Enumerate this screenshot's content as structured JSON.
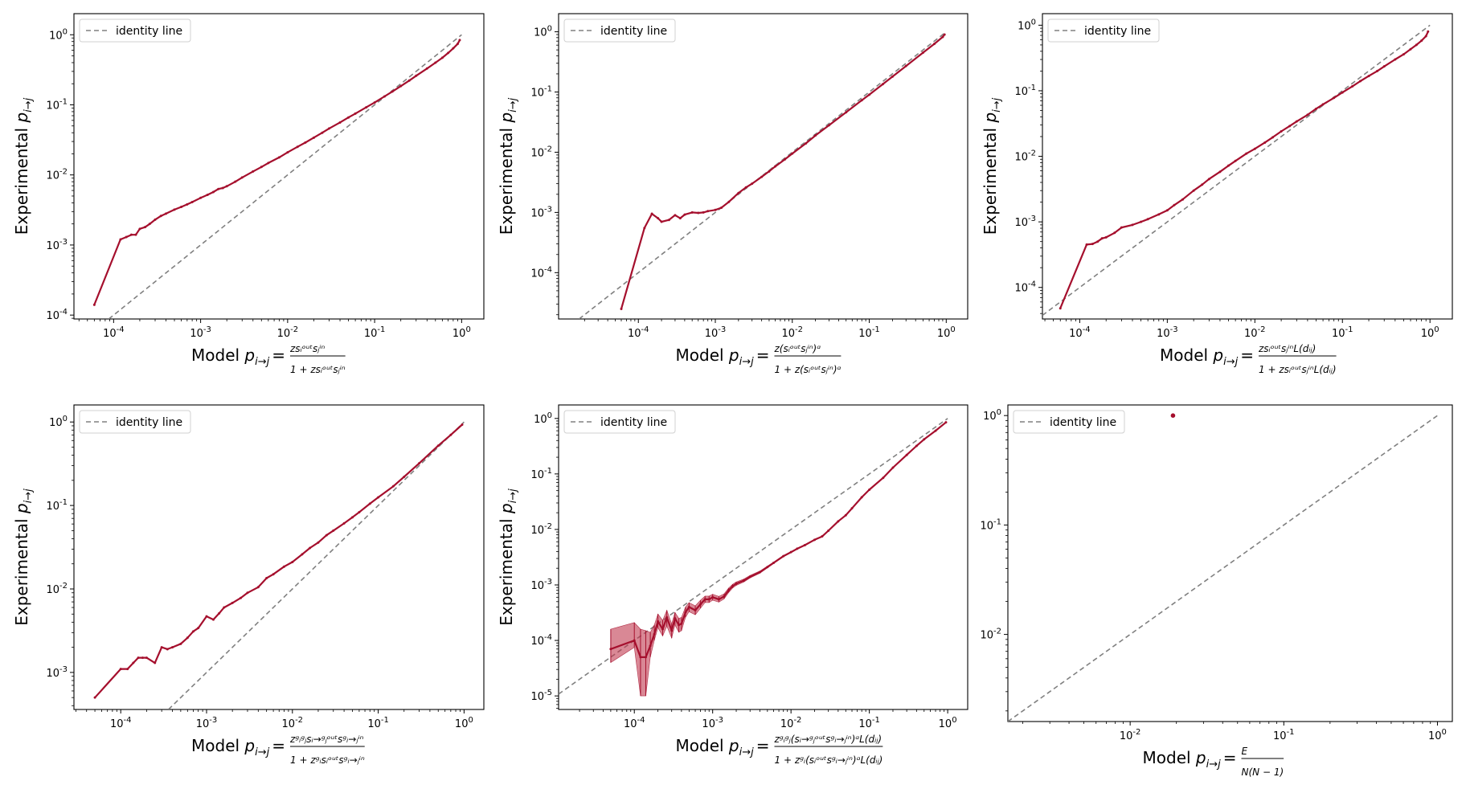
{
  "figure": {
    "legend_label": "identity line",
    "ylabel_text": "Experimental ",
    "ylabel_symbol": "p",
    "ylabel_sub": "i→j",
    "xlabel_prefix": "Model ",
    "xlabel_symbol": "p",
    "xlabel_sub": "i→j",
    "xlabel_eq": "=",
    "line_color": "#a50f2d",
    "band_color": "#c0394f",
    "identity_color": "#808080"
  },
  "chart_data": [
    {
      "type": "line",
      "panel": "top-left",
      "xscale": "log",
      "yscale": "log",
      "xlim": [
        3.5e-05,
        1.8
      ],
      "ylim": [
        8.8e-05,
        2.0
      ],
      "xticks": [
        {
          "v": 0.0001,
          "m": "10",
          "e": "-4"
        },
        {
          "v": 0.001,
          "m": "10",
          "e": "-3"
        },
        {
          "v": 0.01,
          "m": "10",
          "e": "-2"
        },
        {
          "v": 0.1,
          "m": "10",
          "e": "-1"
        },
        {
          "v": 1,
          "m": "10",
          "e": "0"
        }
      ],
      "yticks": [
        {
          "v": 0.0001,
          "m": "10",
          "e": "-4"
        },
        {
          "v": 0.001,
          "m": "10",
          "e": "-3"
        },
        {
          "v": 0.01,
          "m": "10",
          "e": "-2"
        },
        {
          "v": 0.1,
          "m": "10",
          "e": "-1"
        },
        {
          "v": 1,
          "m": "10",
          "e": "0"
        }
      ],
      "legend": "top-left",
      "xlabel_num": "zsᵢᵒᵘᵗsⱼⁱⁿ",
      "xlabel_den": "1 + zsᵢᵒᵘᵗsⱼⁱⁿ",
      "show_ylabel": true,
      "series": [
        {
          "name": "experimental",
          "x": [
            6e-05,
            0.00012,
            0.00014,
            0.00016,
            0.00018,
            0.0002,
            0.00023,
            0.00026,
            0.0003,
            0.00035,
            0.0004,
            0.0005,
            0.0006,
            0.0007,
            0.0008,
            0.001,
            0.0012,
            0.0014,
            0.0016,
            0.0018,
            0.002,
            0.0025,
            0.003,
            0.004,
            0.005,
            0.006,
            0.008,
            0.01,
            0.013,
            0.016,
            0.02,
            0.025,
            0.03,
            0.04,
            0.05,
            0.06,
            0.08,
            0.1,
            0.13,
            0.16,
            0.2,
            0.25,
            0.3,
            0.4,
            0.5,
            0.6,
            0.7,
            0.8,
            0.9,
            0.95
          ],
          "y": [
            0.00014,
            0.0012,
            0.0013,
            0.0014,
            0.0014,
            0.0017,
            0.0018,
            0.002,
            0.0023,
            0.0026,
            0.0028,
            0.0032,
            0.0035,
            0.0038,
            0.0041,
            0.0047,
            0.0052,
            0.0057,
            0.0063,
            0.0065,
            0.0069,
            0.008,
            0.0092,
            0.0112,
            0.013,
            0.0148,
            0.0178,
            0.021,
            0.0252,
            0.029,
            0.034,
            0.04,
            0.046,
            0.056,
            0.066,
            0.075,
            0.092,
            0.108,
            0.132,
            0.155,
            0.185,
            0.222,
            0.26,
            0.33,
            0.4,
            0.47,
            0.55,
            0.64,
            0.74,
            0.84
          ]
        }
      ]
    },
    {
      "type": "line",
      "panel": "top-middle",
      "xscale": "log",
      "yscale": "log",
      "xlim": [
        9.2e-06,
        1.9
      ],
      "ylim": [
        1.7e-05,
        2.0
      ],
      "xticks": [
        {
          "v": 0.0001,
          "m": "10",
          "e": "-4"
        },
        {
          "v": 0.001,
          "m": "10",
          "e": "-3"
        },
        {
          "v": 0.01,
          "m": "10",
          "e": "-2"
        },
        {
          "v": 0.1,
          "m": "10",
          "e": "-1"
        },
        {
          "v": 1,
          "m": "10",
          "e": "0"
        }
      ],
      "yticks": [
        {
          "v": 0.0001,
          "m": "10",
          "e": "-4"
        },
        {
          "v": 0.001,
          "m": "10",
          "e": "-3"
        },
        {
          "v": 0.01,
          "m": "10",
          "e": "-2"
        },
        {
          "v": 0.1,
          "m": "10",
          "e": "-1"
        },
        {
          "v": 1,
          "m": "10",
          "e": "0"
        }
      ],
      "legend": "top-left",
      "xlabel_num": "z(sᵢᵒᵘᵗsⱼⁱⁿ)ᵅ",
      "xlabel_den": "1 + z(sᵢᵒᵘᵗsⱼⁱⁿ)ᵅ",
      "show_ylabel": true,
      "series": [
        {
          "name": "experimental",
          "x": [
            6e-05,
            0.00012,
            0.00015,
            0.00018,
            0.0002,
            0.00025,
            0.0003,
            0.00035,
            0.0004,
            0.0005,
            0.0006,
            0.0007,
            0.0008,
            0.001,
            0.0012,
            0.0015,
            0.002,
            0.0025,
            0.003,
            0.004,
            0.005,
            0.006,
            0.008,
            0.01,
            0.015,
            0.02,
            0.03,
            0.05,
            0.08,
            0.1,
            0.15,
            0.2,
            0.3,
            0.5,
            0.7,
            0.9,
            0.95
          ],
          "y": [
            2.5e-05,
            0.00055,
            0.00095,
            0.0008,
            0.0007,
            0.00075,
            0.0009,
            0.0008,
            0.00092,
            0.001,
            0.00098,
            0.001,
            0.00105,
            0.0011,
            0.0012,
            0.0015,
            0.0021,
            0.0026,
            0.003,
            0.0039,
            0.0048,
            0.0058,
            0.0076,
            0.0095,
            0.014,
            0.019,
            0.028,
            0.046,
            0.073,
            0.09,
            0.135,
            0.18,
            0.27,
            0.45,
            0.63,
            0.82,
            0.9
          ]
        }
      ]
    },
    {
      "type": "line",
      "panel": "top-right",
      "xscale": "log",
      "yscale": "log",
      "xlim": [
        3.75e-05,
        1.8
      ],
      "ylim": [
        3.3e-05,
        1.5
      ],
      "xticks": [
        {
          "v": 0.0001,
          "m": "10",
          "e": "-4"
        },
        {
          "v": 0.001,
          "m": "10",
          "e": "-3"
        },
        {
          "v": 0.01,
          "m": "10",
          "e": "-2"
        },
        {
          "v": 0.1,
          "m": "10",
          "e": "-1"
        },
        {
          "v": 1,
          "m": "10",
          "e": "0"
        }
      ],
      "yticks": [
        {
          "v": 0.0001,
          "m": "10",
          "e": "-4"
        },
        {
          "v": 0.001,
          "m": "10",
          "e": "-3"
        },
        {
          "v": 0.01,
          "m": "10",
          "e": "-2"
        },
        {
          "v": 0.1,
          "m": "10",
          "e": "-1"
        },
        {
          "v": 1,
          "m": "10",
          "e": "0"
        }
      ],
      "legend": "top-left",
      "xlabel_num": "zsᵢᵒᵘᵗsⱼⁱⁿL(dᵢⱼ)",
      "xlabel_den": "1 + zsᵢᵒᵘᵗsⱼⁱⁿL(dᵢⱼ)",
      "show_ylabel": true,
      "series": [
        {
          "name": "experimental",
          "x": [
            6e-05,
            0.00012,
            0.00014,
            0.00016,
            0.00018,
            0.0002,
            0.00025,
            0.0003,
            0.0004,
            0.0005,
            0.0006,
            0.0008,
            0.001,
            0.0012,
            0.0015,
            0.002,
            0.0025,
            0.003,
            0.004,
            0.005,
            0.006,
            0.008,
            0.01,
            0.013,
            0.016,
            0.02,
            0.025,
            0.03,
            0.04,
            0.05,
            0.06,
            0.08,
            0.1,
            0.13,
            0.16,
            0.2,
            0.25,
            0.3,
            0.4,
            0.5,
            0.6,
            0.7,
            0.8,
            0.9,
            0.95
          ],
          "y": [
            4.8e-05,
            0.00045,
            0.00046,
            0.0005,
            0.00056,
            0.00058,
            0.00068,
            0.00082,
            0.0009,
            0.001,
            0.0011,
            0.0013,
            0.0015,
            0.0018,
            0.0022,
            0.003,
            0.0037,
            0.0045,
            0.0058,
            0.0072,
            0.0085,
            0.011,
            0.013,
            0.0162,
            0.0195,
            0.024,
            0.029,
            0.034,
            0.043,
            0.053,
            0.062,
            0.078,
            0.094,
            0.117,
            0.14,
            0.168,
            0.2,
            0.235,
            0.3,
            0.36,
            0.43,
            0.5,
            0.58,
            0.68,
            0.8
          ]
        }
      ]
    },
    {
      "type": "line",
      "panel": "bottom-left",
      "xscale": "log",
      "yscale": "log",
      "xlim": [
        2.85e-05,
        1.7
      ],
      "ylim": [
        0.00036,
        1.6
      ],
      "xticks": [
        {
          "v": 0.0001,
          "m": "10",
          "e": "-4"
        },
        {
          "v": 0.001,
          "m": "10",
          "e": "-3"
        },
        {
          "v": 0.01,
          "m": "10",
          "e": "-2"
        },
        {
          "v": 0.1,
          "m": "10",
          "e": "-1"
        },
        {
          "v": 1,
          "m": "10",
          "e": "0"
        }
      ],
      "yticks": [
        {
          "v": 0.001,
          "m": "10",
          "e": "-3"
        },
        {
          "v": 0.01,
          "m": "10",
          "e": "-2"
        },
        {
          "v": 0.1,
          "m": "10",
          "e": "-1"
        },
        {
          "v": 1,
          "m": "10",
          "e": "0"
        }
      ],
      "legend": "top-left",
      "xlabel_num": "zᵍᵢᵍⱼsᵢ→ᵍⱼᵒᵘᵗsᵍᵢ→ⱼⁱⁿ",
      "xlabel_den": "1 + zᵍᵢsᵢᵒᵘᵗsᵍᵢ→ⱼⁱⁿ",
      "show_ylabel": true,
      "series": [
        {
          "name": "experimental",
          "x": [
            5e-05,
            0.0001,
            0.00012,
            0.00014,
            0.00016,
            0.00018,
            0.0002,
            0.00025,
            0.0003,
            0.00035,
            0.0004,
            0.0005,
            0.0006,
            0.0007,
            0.0008,
            0.001,
            0.0012,
            0.0014,
            0.0016,
            0.002,
            0.0025,
            0.003,
            0.004,
            0.005,
            0.006,
            0.008,
            0.01,
            0.013,
            0.016,
            0.02,
            0.025,
            0.03,
            0.04,
            0.05,
            0.06,
            0.08,
            0.1,
            0.15,
            0.2,
            0.3,
            0.5,
            0.7,
            0.95
          ],
          "y": [
            0.0005,
            0.0011,
            0.0011,
            0.0013,
            0.0015,
            0.0015,
            0.0015,
            0.0013,
            0.002,
            0.0019,
            0.002,
            0.0022,
            0.0026,
            0.0031,
            0.0034,
            0.0047,
            0.0043,
            0.0051,
            0.006,
            0.0068,
            0.0078,
            0.009,
            0.0105,
            0.0135,
            0.015,
            0.0185,
            0.021,
            0.026,
            0.031,
            0.036,
            0.044,
            0.05,
            0.061,
            0.072,
            0.083,
            0.105,
            0.125,
            0.17,
            0.22,
            0.32,
            0.52,
            0.7,
            0.93
          ]
        }
      ]
    },
    {
      "type": "line",
      "panel": "bottom-middle",
      "xscale": "log",
      "yscale": "log",
      "xlim": [
        1.08e-05,
        1.8
      ],
      "ylim": [
        5.7e-06,
        1.75
      ],
      "xticks": [
        {
          "v": 0.0001,
          "m": "10",
          "e": "-4"
        },
        {
          "v": 0.001,
          "m": "10",
          "e": "-3"
        },
        {
          "v": 0.01,
          "m": "10",
          "e": "-2"
        },
        {
          "v": 0.1,
          "m": "10",
          "e": "-1"
        },
        {
          "v": 1,
          "m": "10",
          "e": "0"
        }
      ],
      "yticks": [
        {
          "v": 1e-05,
          "m": "10",
          "e": "-5"
        },
        {
          "v": 0.0001,
          "m": "10",
          "e": "-4"
        },
        {
          "v": 0.001,
          "m": "10",
          "e": "-3"
        },
        {
          "v": 0.01,
          "m": "10",
          "e": "-2"
        },
        {
          "v": 0.1,
          "m": "10",
          "e": "-1"
        },
        {
          "v": 1,
          "m": "10",
          "e": "0"
        }
      ],
      "legend": "top-left",
      "xlabel_num": "zᵍᵢᵍⱼ(sᵢ→ᵍⱼᵒᵘᵗsᵍᵢ→ⱼⁱⁿ)ᵅL(dᵢⱼ)",
      "xlabel_den": "1 + zᵍᵢ(sᵢᵒᵘᵗsᵍᵢ→ⱼⁱⁿ)ᵅL(dᵢⱼ)",
      "show_ylabel": true,
      "series": [
        {
          "name": "experimental",
          "x": [
            5e-05,
            0.0001,
            0.00012,
            0.00014,
            0.00016,
            0.00018,
            0.0002,
            0.00023,
            0.00026,
            0.0003,
            0.00033,
            0.00037,
            0.0004,
            0.00045,
            0.0005,
            0.0006,
            0.0007,
            0.0008,
            0.0009,
            0.001,
            0.0012,
            0.0014,
            0.0016,
            0.0018,
            0.002,
            0.0025,
            0.003,
            0.004,
            0.005,
            0.006,
            0.008,
            0.01,
            0.012,
            0.015,
            0.02,
            0.025,
            0.03,
            0.04,
            0.05,
            0.06,
            0.08,
            0.1,
            0.15,
            0.2,
            0.3,
            0.4,
            0.5,
            0.7,
            0.95
          ],
          "y": [
            7e-05,
            0.0001,
            5e-05,
            5e-05,
            8e-05,
            0.00013,
            0.00022,
            0.00016,
            0.00026,
            0.00015,
            0.00025,
            0.00019,
            0.0002,
            0.00032,
            0.0004,
            0.00035,
            0.00045,
            0.00055,
            0.00055,
            0.0006,
            0.00055,
            0.00062,
            0.0008,
            0.00095,
            0.00105,
            0.0012,
            0.0014,
            0.0017,
            0.0021,
            0.0025,
            0.0033,
            0.0039,
            0.0045,
            0.0052,
            0.0065,
            0.0075,
            0.0095,
            0.014,
            0.018,
            0.024,
            0.038,
            0.052,
            0.085,
            0.13,
            0.22,
            0.32,
            0.42,
            0.6,
            0.85
          ],
          "y_low": [
            4e-05,
            7.5e-05,
            1e-05,
            1e-05,
            5e-05,
            0.0001,
            0.00017,
            0.00012,
            0.00018,
            0.00011,
            0.00019,
            0.00014,
            0.00015,
            0.00026,
            0.00033,
            0.00029,
            0.00038,
            0.00048,
            0.00048,
            0.00053,
            0.00049,
            0.00056,
            0.00073,
            0.00088,
            0.00098,
            0.00113,
            0.00133,
            0.00162,
            0.00202,
            0.00242,
            0.0032,
            0.0038,
            0.0044,
            0.0051,
            0.0064,
            0.0074,
            0.0094,
            0.0139,
            0.0179,
            0.0239,
            0.0379,
            0.0519,
            0.085,
            0.13,
            0.22,
            0.32,
            0.42,
            0.6,
            0.85
          ],
          "y_high": [
            0.00016,
            0.00021,
            0.00016,
            0.00015,
            0.00014,
            0.00019,
            0.0003,
            0.00023,
            0.00035,
            0.0002,
            0.00032,
            0.00025,
            0.00026,
            0.0004,
            0.00048,
            0.00042,
            0.00053,
            0.00063,
            0.00063,
            0.00068,
            0.00062,
            0.00069,
            0.00088,
            0.00103,
            0.00113,
            0.00128,
            0.00148,
            0.00178,
            0.00218,
            0.00258,
            0.0034,
            0.004,
            0.0046,
            0.0053,
            0.0066,
            0.0076,
            0.0096,
            0.0141,
            0.0181,
            0.0241,
            0.0381,
            0.0521,
            0.085,
            0.13,
            0.22,
            0.32,
            0.42,
            0.6,
            0.85
          ]
        }
      ]
    },
    {
      "type": "scatter",
      "panel": "bottom-right",
      "xscale": "log",
      "yscale": "log",
      "xlim": [
        0.0016,
        1.25
      ],
      "ylim": [
        0.0016,
        1.25
      ],
      "xticks": [
        {
          "v": 0.01,
          "m": "10",
          "e": "-2"
        },
        {
          "v": 0.1,
          "m": "10",
          "e": "-1"
        },
        {
          "v": 1,
          "m": "10",
          "e": "0"
        }
      ],
      "yticks": [
        {
          "v": 0.01,
          "m": "10",
          "e": "-2"
        },
        {
          "v": 0.1,
          "m": "10",
          "e": "-1"
        },
        {
          "v": 1,
          "m": "10",
          "e": "0"
        }
      ],
      "legend": "top-left",
      "xlabel_num": "E",
      "xlabel_den": "N(N − 1)",
      "show_ylabel": false,
      "series": [
        {
          "name": "experimental",
          "x": [
            0.019
          ],
          "y": [
            1.0
          ]
        }
      ]
    }
  ]
}
